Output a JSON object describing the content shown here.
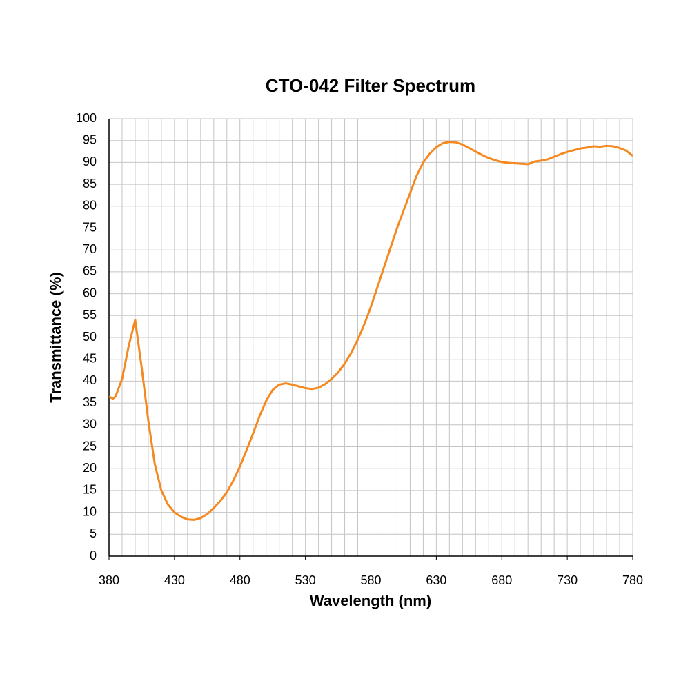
{
  "chart_data": {
    "type": "line",
    "title": "CTO-042 Filter Spectrum",
    "x_label": "Wavelength (nm)",
    "y_label": "Transmittance (%)",
    "x": [
      380,
      383,
      385,
      390,
      395,
      400,
      405,
      410,
      415,
      420,
      425,
      430,
      435,
      440,
      445,
      450,
      455,
      460,
      465,
      470,
      475,
      480,
      485,
      490,
      495,
      500,
      505,
      510,
      515,
      520,
      525,
      530,
      535,
      540,
      545,
      550,
      555,
      560,
      565,
      570,
      575,
      580,
      585,
      590,
      595,
      600,
      605,
      610,
      615,
      620,
      625,
      630,
      635,
      640,
      645,
      650,
      655,
      660,
      665,
      670,
      675,
      680,
      685,
      690,
      695,
      700,
      705,
      710,
      715,
      720,
      725,
      730,
      735,
      740,
      745,
      750,
      755,
      760,
      765,
      770,
      775,
      780
    ],
    "values": [
      36.5,
      36,
      36.5,
      40.5,
      48,
      54,
      43,
      31,
      21,
      15,
      11.8,
      10,
      9,
      8.4,
      8.3,
      8.7,
      9.6,
      11,
      12.6,
      14.6,
      17.3,
      20.5,
      24.2,
      28,
      32,
      35.5,
      38,
      39.2,
      39.5,
      39.2,
      38.8,
      38.4,
      38.2,
      38.5,
      39.3,
      40.5,
      42,
      44,
      46.5,
      49.5,
      53,
      57,
      61.5,
      66,
      70.5,
      75,
      79,
      83,
      87,
      90,
      92,
      93.5,
      94.4,
      94.7,
      94.6,
      94.1,
      93.3,
      92.5,
      91.7,
      91,
      90.5,
      90.1,
      89.9,
      89.8,
      89.7,
      89.6,
      90.2,
      90.4,
      90.7,
      91.3,
      91.9,
      92.4,
      92.8,
      93.2,
      93.4,
      93.7,
      93.6,
      93.8,
      93.7,
      93.3,
      92.7,
      91.5
    ],
    "color": "#f5891f",
    "xlim": [
      380,
      780
    ],
    "xticks": [
      380,
      430,
      480,
      530,
      580,
      630,
      680,
      730,
      780
    ],
    "x_grid": [
      380,
      390,
      400,
      410,
      420,
      430,
      440,
      450,
      460,
      470,
      480,
      490,
      500,
      510,
      520,
      530,
      540,
      550,
      560,
      570,
      580,
      590,
      600,
      610,
      620,
      630,
      640,
      650,
      660,
      670,
      680,
      690,
      700,
      710,
      720,
      730,
      740,
      750,
      760,
      770,
      780
    ],
    "ylim": [
      0,
      100
    ],
    "yticks": [
      0,
      5,
      10,
      15,
      20,
      25,
      30,
      35,
      40,
      45,
      50,
      55,
      60,
      65,
      70,
      75,
      80,
      85,
      90,
      95,
      100
    ],
    "grid": true
  }
}
